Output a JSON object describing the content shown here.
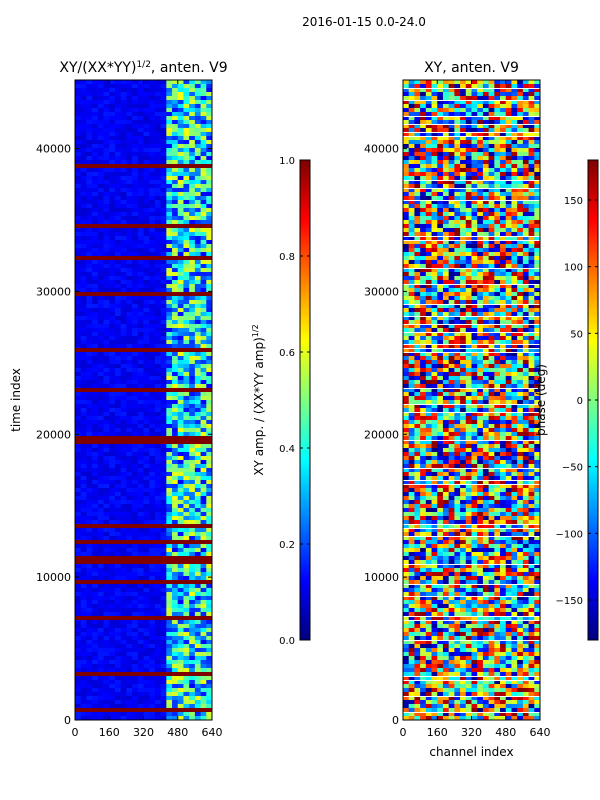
{
  "figure_title": "2016-01-15 0.0-24.0",
  "chart_data": [
    {
      "type": "heatmap",
      "title": "XY/(XX*YY)",
      "title_sup": "1/2",
      "title_suffix": ", anten. V9",
      "xlabel": "",
      "ylabel": "time index",
      "x_ticks": [
        "0",
        "160",
        "320",
        "480",
        "640"
      ],
      "x_tick_values": [
        0,
        160,
        320,
        480,
        640
      ],
      "y_ticks": [
        "0",
        "10000",
        "20000",
        "30000",
        "40000"
      ],
      "y_tick_values": [
        0,
        10000,
        20000,
        30000,
        40000
      ],
      "xlim": [
        0,
        640
      ],
      "ylim": [
        0,
        44800
      ],
      "colormap": "jet",
      "colorbar": {
        "label": "XY amp. / (XX*YY amp)",
        "label_sup": "1/2",
        "range": [
          0,
          1
        ],
        "ticks": [
          "0.0",
          "0.2",
          "0.4",
          "0.6",
          "0.8",
          "1.0"
        ],
        "tick_values": [
          0,
          0.2,
          0.4,
          0.6,
          0.8,
          1.0
        ]
      },
      "description_values": {
        "background_level": 0.1,
        "active_channel_range": [
          400,
          640
        ],
        "flagged_time_level": 1.0
      }
    },
    {
      "type": "heatmap",
      "title": "XY, anten. V9",
      "xlabel": "channel index",
      "ylabel": "",
      "x_ticks": [
        "0",
        "160",
        "320",
        "480",
        "640"
      ],
      "x_tick_values": [
        0,
        160,
        320,
        480,
        640
      ],
      "y_ticks": [
        "0",
        "10000",
        "20000",
        "30000",
        "40000"
      ],
      "y_tick_values": [
        0,
        10000,
        20000,
        30000,
        40000
      ],
      "xlim": [
        0,
        640
      ],
      "ylim": [
        0,
        44800
      ],
      "colormap": "jet",
      "colorbar": {
        "label": "phase (deg)",
        "range": [
          -180,
          180
        ],
        "ticks": [
          "−150",
          "−100",
          "−50",
          "0",
          "50",
          "100",
          "150"
        ],
        "tick_values": [
          -150,
          -100,
          -50,
          0,
          50,
          100,
          150
        ]
      }
    }
  ],
  "colors": {
    "jet_stops": [
      "#00007f",
      "#0000ff",
      "#007fff",
      "#00ffff",
      "#7fff7f",
      "#ffff00",
      "#ff7f00",
      "#ff0000",
      "#7f0000"
    ],
    "background": "#ffffff"
  }
}
